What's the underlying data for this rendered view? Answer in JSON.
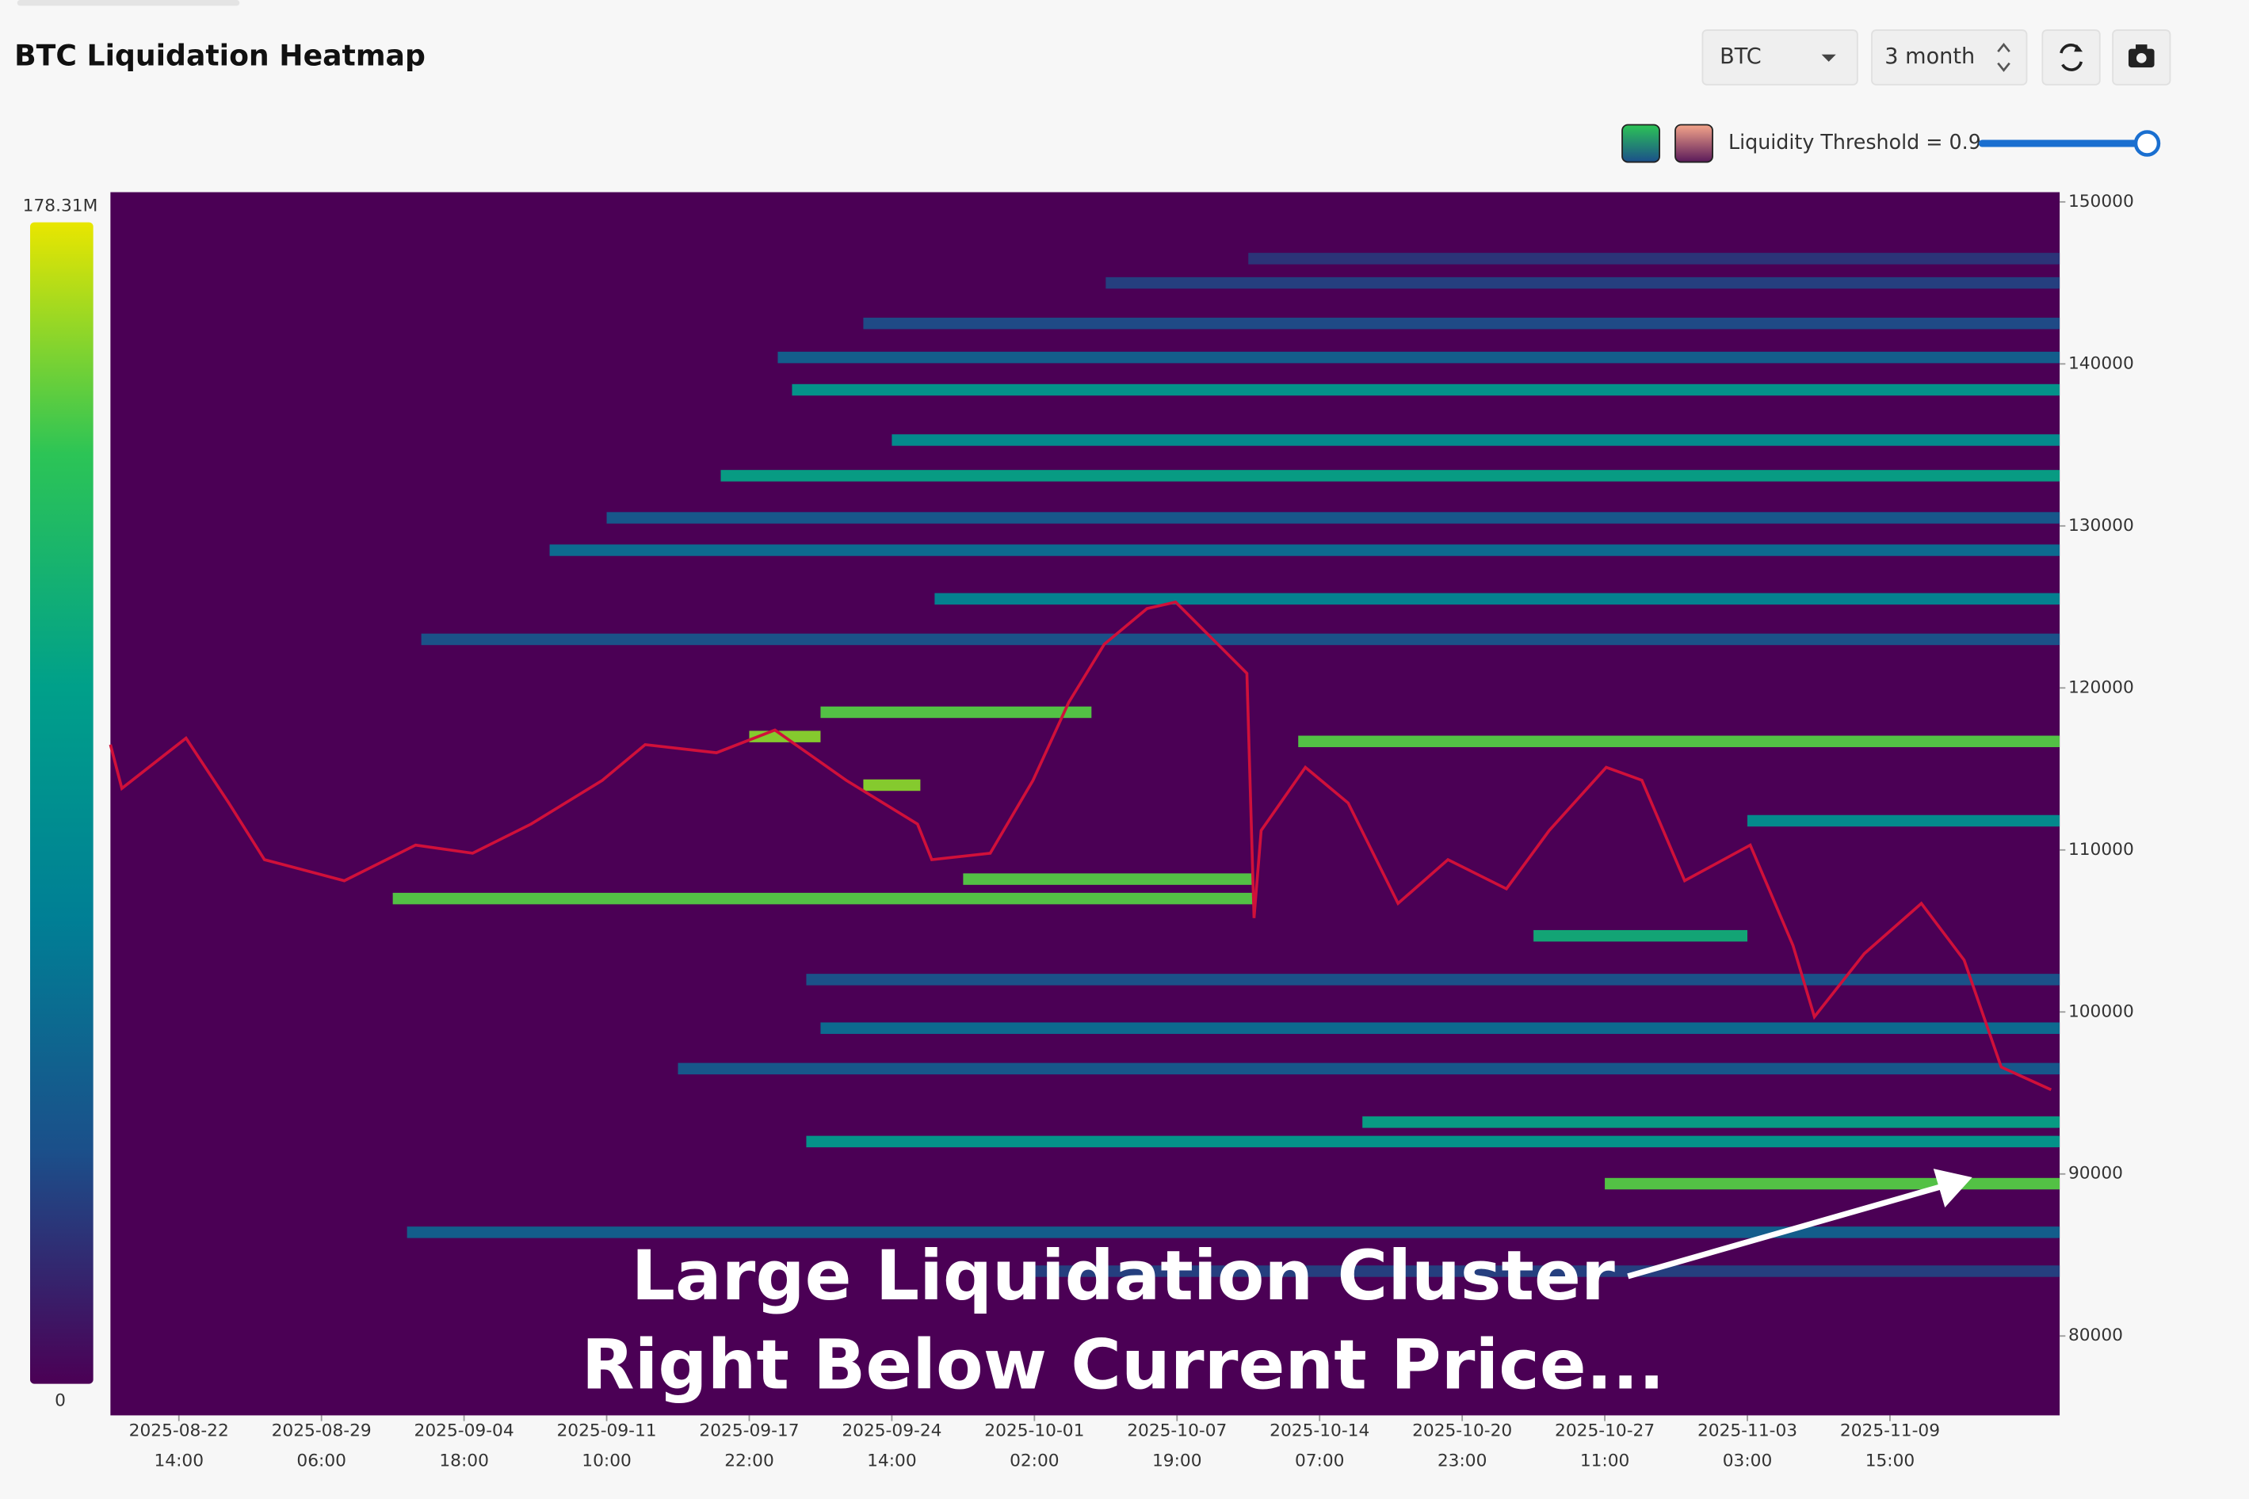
{
  "controls": {
    "symbol": "BTC",
    "range": "3 month",
    "threshold_label": "Liquidity Threshold = 0.9"
  },
  "chart_data": {
    "type": "heatmap",
    "title": "BTC Liquidation Heatmap",
    "ylim": [
      75100,
      150600
    ],
    "yticks": [
      80000,
      90000,
      100000,
      110000,
      120000,
      130000,
      140000,
      150000
    ],
    "xlim": [
      -0.48,
      13.19
    ],
    "xticks": [
      {
        "value": 0,
        "label": "2025-08-22"
      },
      {
        "value": 1,
        "label": "2025-08-29"
      },
      {
        "value": 2,
        "label": "2025-09-04"
      },
      {
        "value": 3,
        "label": "2025-09-11"
      },
      {
        "value": 4,
        "label": "2025-09-17"
      },
      {
        "value": 5,
        "label": "2025-09-24"
      },
      {
        "value": 6,
        "label": "2025-10-01"
      },
      {
        "value": 7,
        "label": "2025-10-07"
      },
      {
        "value": 8,
        "label": "2025-10-14"
      },
      {
        "value": 9,
        "label": "2025-10-20"
      },
      {
        "value": 10,
        "label": "2025-10-27"
      },
      {
        "value": 11,
        "label": "2025-11-03"
      },
      {
        "value": 12,
        "label": "2025-11-09"
      }
    ],
    "xtick_times": [
      "14:00",
      "06:00",
      "18:00",
      "10:00",
      "22:00",
      "14:00",
      "02:00",
      "19:00",
      "07:00",
      "23:00",
      "11:00",
      "03:00",
      "15:00"
    ],
    "clim": [
      0,
      178.31
    ],
    "colorbar_ticks": [
      0,
      {
        "value": 178.31,
        "label": "178.31M"
      }
    ],
    "colorscale": [
      "#4b0055",
      "#1b4f8a",
      "#007f95",
      "#00a08a",
      "#2cc456",
      "#e9e600"
    ],
    "background": "#4b0055",
    "bands": [
      {
        "price": 146500,
        "start": 7.5,
        "intensity": 25
      },
      {
        "price": 145000,
        "start": 6.5,
        "intensity": 30
      },
      {
        "price": 142500,
        "start": 4.8,
        "intensity": 35
      },
      {
        "price": 140400,
        "start": 4.2,
        "intensity": 50
      },
      {
        "price": 138400,
        "start": 4.3,
        "intensity": 100
      },
      {
        "price": 135300,
        "start": 5.0,
        "intensity": 90
      },
      {
        "price": 133100,
        "start": 3.8,
        "intensity": 110
      },
      {
        "price": 130500,
        "start": 3.0,
        "intensity": 45
      },
      {
        "price": 128500,
        "start": 2.6,
        "intensity": 60
      },
      {
        "price": 125500,
        "start": 5.3,
        "intensity": 80
      },
      {
        "price": 123000,
        "start": 1.7,
        "intensity": 40
      },
      {
        "price": 118500,
        "start": 4.5,
        "end": 6.4,
        "intensity": 150
      },
      {
        "price": 117000,
        "start": 4.0,
        "end": 4.5,
        "intensity": 160
      },
      {
        "price": 116700,
        "start": 7.85,
        "intensity": 150
      },
      {
        "price": 114000,
        "start": 4.8,
        "end": 5.2,
        "intensity": 160
      },
      {
        "price": 111800,
        "start": 11.0,
        "intensity": 90
      },
      {
        "price": 108200,
        "start": 5.5,
        "end": 7.54,
        "intensity": 150
      },
      {
        "price": 107000,
        "start": 1.5,
        "end": 7.54,
        "intensity": 150
      },
      {
        "price": 104700,
        "start": 9.5,
        "end": 11.0,
        "intensity": 120
      },
      {
        "price": 102000,
        "start": 4.4,
        "intensity": 40
      },
      {
        "price": 99000,
        "start": 4.5,
        "intensity": 60
      },
      {
        "price": 96500,
        "start": 3.5,
        "intensity": 45
      },
      {
        "price": 93200,
        "start": 8.3,
        "intensity": 110
      },
      {
        "price": 92000,
        "start": 4.4,
        "intensity": 100
      },
      {
        "price": 89400,
        "start": 10.0,
        "intensity": 150
      },
      {
        "price": 86400,
        "start": 1.6,
        "intensity": 50
      },
      {
        "price": 84000,
        "start": 6.0,
        "intensity": 30
      }
    ],
    "price_x": [
      -0.48,
      -0.4,
      0.05,
      0.35,
      0.6,
      1.16,
      1.66,
      2.06,
      2.47,
      2.97,
      3.27,
      3.77,
      4.18,
      4.68,
      5.18,
      5.28,
      5.69,
      5.99,
      6.24,
      6.49,
      6.79,
      6.99,
      7.24,
      7.49,
      7.54,
      7.59,
      7.9,
      8.2,
      8.55,
      8.9,
      9.31,
      9.61,
      10.01,
      10.26,
      10.56,
      11.02,
      11.32,
      11.47,
      11.82,
      12.22,
      12.52,
      12.78,
      13.13
    ],
    "price_values": [
      116500,
      113800,
      116900,
      112900,
      109400,
      108100,
      110300,
      109800,
      111600,
      114300,
      116500,
      116000,
      117400,
      114300,
      111600,
      109400,
      109800,
      114300,
      119100,
      122700,
      124900,
      125300,
      123100,
      120900,
      105800,
      111200,
      115100,
      112900,
      106700,
      109400,
      107600,
      111200,
      115100,
      114300,
      108100,
      110300,
      104100,
      99700,
      103600,
      106700,
      103200,
      96600,
      95200
    ],
    "price_color": "#d0103a",
    "annotations": [
      "Large Liquidation Cluster",
      "Right Below Current Price..."
    ]
  }
}
